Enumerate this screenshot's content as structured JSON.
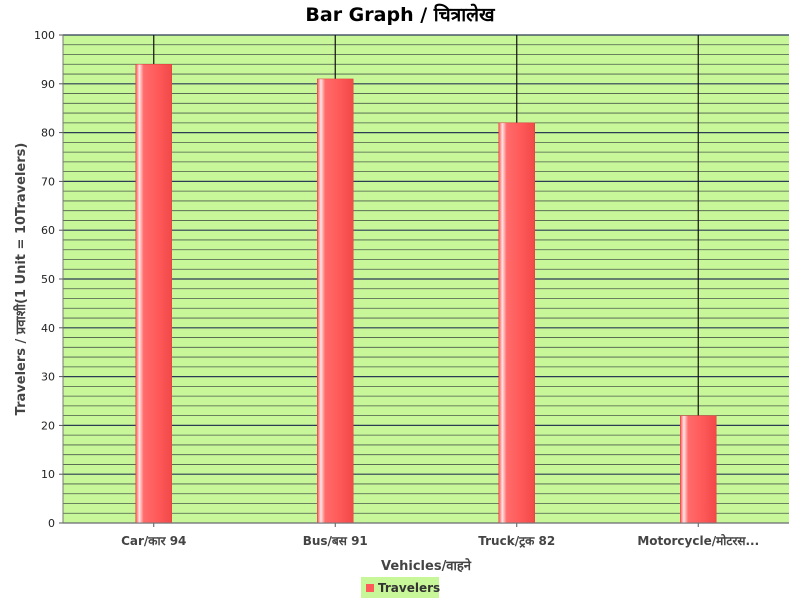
{
  "chart_data": {
    "type": "bar",
    "title": "Bar Graph / चित्रालेख",
    "xlabel": "Vehicles/वाहने",
    "ylabel": "Travelers / प्रवाशी(1 Unit = 10Travelers)",
    "categories": [
      "Car/कार 94",
      "Bus/बस 91",
      "Truck/ट्रक 82",
      "Motorcycle/मोटरस..."
    ],
    "series": [
      {
        "name": "Travelers",
        "values": [
          94,
          91,
          82,
          22
        ]
      }
    ],
    "ylim": [
      0,
      100
    ],
    "yticks": [
      0,
      10,
      20,
      30,
      40,
      50,
      60,
      70,
      80,
      90,
      100
    ],
    "grid": true,
    "legend_position": "bottom-center",
    "colors": {
      "plot_background": "#c8f79a",
      "bar": "#ff5a5a",
      "bar_highlight": "#ffd0d0",
      "grid_major": "#2b3a55",
      "grid_minor": "#4a5a4a",
      "legend_background": "#c8f79a"
    }
  }
}
